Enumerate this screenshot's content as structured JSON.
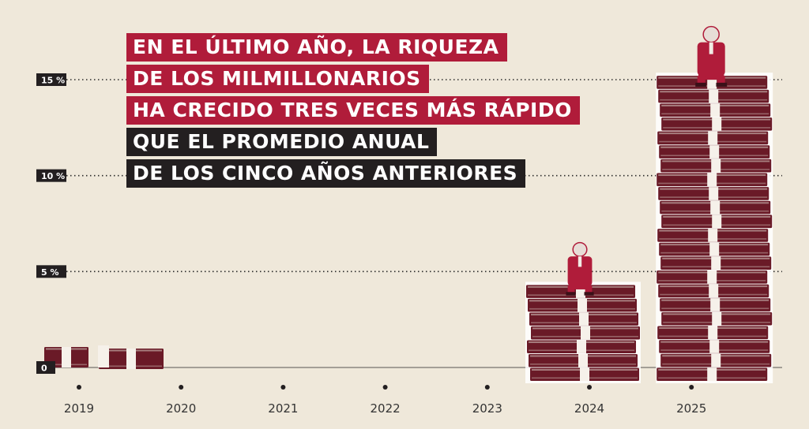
{
  "headline": {
    "lines": [
      "EN EL ÚLTIMO AÑO, LA RIQUEZA",
      "DE LOS MILMILLONARIOS",
      "HA CRECIDO TRES VECES MÁS RÁPIDO",
      "QUE EL PROMEDIO ANUAL",
      "DE LOS CINCO AÑOS ANTERIORES"
    ]
  },
  "colors": {
    "background": "#efe8da",
    "accent_red": "#b01c3a",
    "dark": "#231f20",
    "money_dark": "#6a1a27",
    "money_light": "#d9cfc6"
  },
  "chart_data": {
    "type": "bar",
    "title": "",
    "xlabel": "",
    "ylabel": "",
    "categories": [
      "2019",
      "2020",
      "2021",
      "2022",
      "2023",
      "2024",
      "2025"
    ],
    "values": [
      1,
      0,
      0,
      0,
      0,
      4.3,
      15.2
    ],
    "ylim": [
      0,
      15
    ],
    "yticks": [
      {
        "value": 0,
        "label": "0"
      },
      {
        "value": 5,
        "label": "5 %"
      },
      {
        "value": 10,
        "label": "10 %"
      },
      {
        "value": 15,
        "label": "15 %"
      }
    ],
    "grid": true,
    "bar_style": "stacks of banknotes",
    "figures_on_bars": [
      "2024",
      "2025"
    ]
  }
}
